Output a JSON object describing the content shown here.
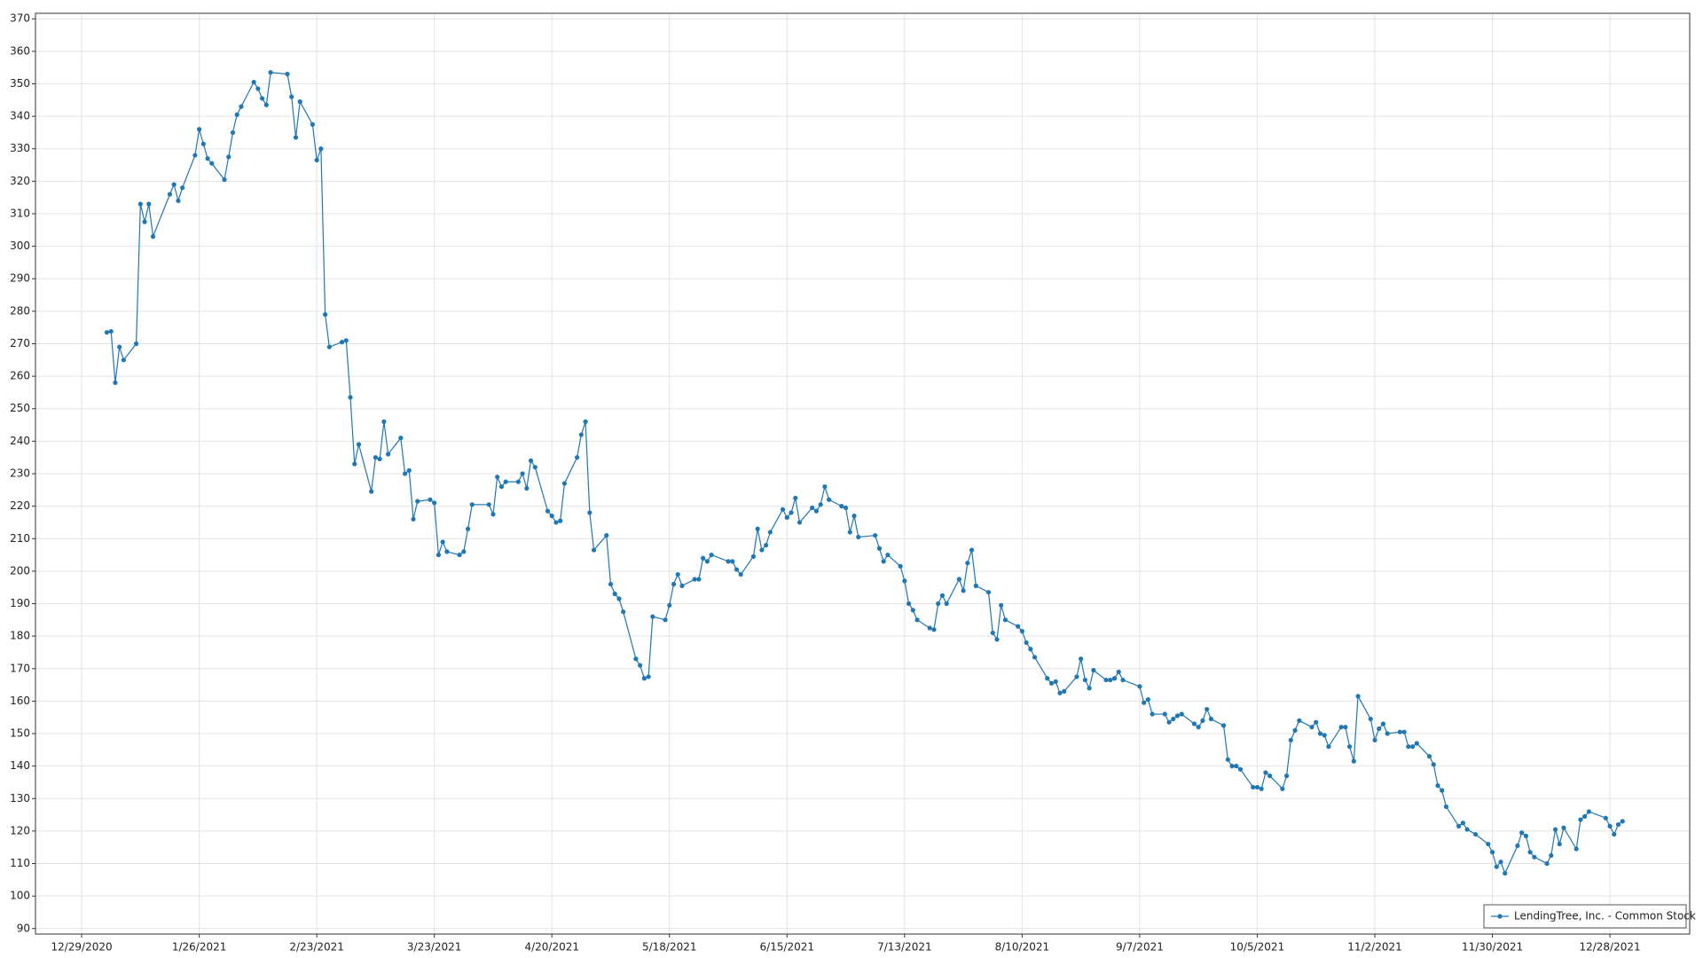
{
  "chart_data": {
    "type": "line",
    "x": [
      "1/4/2021",
      "1/5/2021",
      "1/6/2021",
      "1/7/2021",
      "1/8/2021",
      "1/11/2021",
      "1/12/2021",
      "1/13/2021",
      "1/14/2021",
      "1/15/2021",
      "1/19/2021",
      "1/20/2021",
      "1/21/2021",
      "1/22/2021",
      "1/25/2021",
      "1/26/2021",
      "1/27/2021",
      "1/28/2021",
      "1/29/2021",
      "2/1/2021",
      "2/2/2021",
      "2/3/2021",
      "2/4/2021",
      "2/5/2021",
      "2/8/2021",
      "2/9/2021",
      "2/10/2021",
      "2/11/2021",
      "2/12/2021",
      "2/16/2021",
      "2/17/2021",
      "2/18/2021",
      "2/19/2021",
      "2/22/2021",
      "2/23/2021",
      "2/24/2021",
      "2/25/2021",
      "2/26/2021",
      "3/1/2021",
      "3/2/2021",
      "3/3/2021",
      "3/4/2021",
      "3/5/2021",
      "3/8/2021",
      "3/9/2021",
      "3/10/2021",
      "3/11/2021",
      "3/12/2021",
      "3/15/2021",
      "3/16/2021",
      "3/17/2021",
      "3/18/2021",
      "3/19/2021",
      "3/22/2021",
      "3/23/2021",
      "3/24/2021",
      "3/25/2021",
      "3/26/2021",
      "3/29/2021",
      "3/30/2021",
      "3/31/2021",
      "4/1/2021",
      "4/5/2021",
      "4/6/2021",
      "4/7/2021",
      "4/8/2021",
      "4/9/2021",
      "4/12/2021",
      "4/13/2021",
      "4/14/2021",
      "4/15/2021",
      "4/16/2021",
      "4/19/2021",
      "4/20/2021",
      "4/21/2021",
      "4/22/2021",
      "4/23/2021",
      "4/26/2021",
      "4/27/2021",
      "4/28/2021",
      "4/29/2021",
      "4/30/2021",
      "5/3/2021",
      "5/4/2021",
      "5/5/2021",
      "5/6/2021",
      "5/7/2021",
      "5/10/2021",
      "5/11/2021",
      "5/12/2021",
      "5/13/2021",
      "5/14/2021",
      "5/17/2021",
      "5/18/2021",
      "5/19/2021",
      "5/20/2021",
      "5/21/2021",
      "5/24/2021",
      "5/25/2021",
      "5/26/2021",
      "5/27/2021",
      "5/28/2021",
      "6/1/2021",
      "6/2/2021",
      "6/3/2021",
      "6/4/2021",
      "6/7/2021",
      "6/8/2021",
      "6/9/2021",
      "6/10/2021",
      "6/11/2021",
      "6/14/2021",
      "6/15/2021",
      "6/16/2021",
      "6/17/2021",
      "6/18/2021",
      "6/21/2021",
      "6/22/2021",
      "6/23/2021",
      "6/24/2021",
      "6/25/2021",
      "6/28/2021",
      "6/29/2021",
      "6/30/2021",
      "7/1/2021",
      "7/2/2021",
      "7/6/2021",
      "7/7/2021",
      "7/8/2021",
      "7/9/2021",
      "7/12/2021",
      "7/13/2021",
      "7/14/2021",
      "7/15/2021",
      "7/16/2021",
      "7/19/2021",
      "7/20/2021",
      "7/21/2021",
      "7/22/2021",
      "7/23/2021",
      "7/26/2021",
      "7/27/2021",
      "7/28/2021",
      "7/29/2021",
      "7/30/2021",
      "8/2/2021",
      "8/3/2021",
      "8/4/2021",
      "8/5/2021",
      "8/6/2021",
      "8/9/2021",
      "8/10/2021",
      "8/11/2021",
      "8/12/2021",
      "8/13/2021",
      "8/16/2021",
      "8/17/2021",
      "8/18/2021",
      "8/19/2021",
      "8/20/2021",
      "8/23/2021",
      "8/24/2021",
      "8/25/2021",
      "8/26/2021",
      "8/27/2021",
      "8/30/2021",
      "8/31/2021",
      "9/1/2021",
      "9/2/2021",
      "9/3/2021",
      "9/7/2021",
      "9/8/2021",
      "9/9/2021",
      "9/10/2021",
      "9/13/2021",
      "9/14/2021",
      "9/15/2021",
      "9/16/2021",
      "9/17/2021",
      "9/20/2021",
      "9/21/2021",
      "9/22/2021",
      "9/23/2021",
      "9/24/2021",
      "9/27/2021",
      "9/28/2021",
      "9/29/2021",
      "9/30/2021",
      "10/1/2021",
      "10/4/2021",
      "10/5/2021",
      "10/6/2021",
      "10/7/2021",
      "10/8/2021",
      "10/11/2021",
      "10/12/2021",
      "10/13/2021",
      "10/14/2021",
      "10/15/2021",
      "10/18/2021",
      "10/19/2021",
      "10/20/2021",
      "10/21/2021",
      "10/22/2021",
      "10/25/2021",
      "10/26/2021",
      "10/27/2021",
      "10/28/2021",
      "10/29/2021",
      "11/1/2021",
      "11/2/2021",
      "11/3/2021",
      "11/4/2021",
      "11/5/2021",
      "11/8/2021",
      "11/9/2021",
      "11/10/2021",
      "11/11/2021",
      "11/12/2021",
      "11/15/2021",
      "11/16/2021",
      "11/17/2021",
      "11/18/2021",
      "11/19/2021",
      "11/22/2021",
      "11/23/2021",
      "11/24/2021",
      "11/26/2021",
      "11/29/2021",
      "11/30/2021",
      "12/1/2021",
      "12/2/2021",
      "12/3/2021",
      "12/6/2021",
      "12/7/2021",
      "12/8/2021",
      "12/9/2021",
      "12/10/2021",
      "12/13/2021",
      "12/14/2021",
      "12/15/2021",
      "12/16/2021",
      "12/17/2021",
      "12/20/2021",
      "12/21/2021",
      "12/22/2021",
      "12/23/2021",
      "12/27/2021",
      "12/28/2021",
      "12/29/2021",
      "12/30/2021",
      "12/31/2021"
    ],
    "series": [
      {
        "name": "LendingTree, Inc. - Common Stock",
        "color": "#1f77b4",
        "values": [
          273.5,
          273.8,
          258,
          269,
          265,
          270,
          313,
          307.5,
          313,
          303,
          316,
          319,
          314,
          318,
          328,
          336,
          331.5,
          327,
          325.5,
          320.5,
          327.5,
          335,
          340.5,
          343,
          350.5,
          348.5,
          345.5,
          343.5,
          353.5,
          353,
          346,
          333.5,
          344.5,
          337.5,
          326.5,
          330,
          279,
          269,
          270.5,
          271,
          253.5,
          233,
          239,
          224.5,
          235,
          234.5,
          246,
          236,
          241,
          230,
          231,
          216,
          221.5,
          222,
          221,
          205,
          209,
          206,
          205,
          206,
          213,
          220.5,
          220.5,
          217.5,
          229,
          226,
          227.5,
          227.5,
          230,
          225.5,
          234,
          232,
          218.5,
          217,
          215,
          215.5,
          227,
          235,
          242,
          246,
          218,
          206.5,
          211,
          196,
          193,
          191.5,
          187.5,
          173,
          171,
          167,
          167.5,
          186,
          185,
          189.5,
          196,
          199,
          195.5,
          197.5,
          197.5,
          204,
          203,
          205,
          203,
          203,
          200.5,
          199,
          204.5,
          213,
          206.5,
          208,
          212,
          219,
          216.5,
          218,
          222.5,
          215,
          219.5,
          218.5,
          220.5,
          226,
          222,
          220,
          219.5,
          212,
          217,
          210.5,
          211,
          207,
          203,
          205,
          201.5,
          197,
          190,
          188,
          185,
          182.5,
          182,
          190,
          192.5,
          190,
          197.5,
          194,
          202.5,
          206.5,
          195.5,
          193.5,
          181,
          179,
          189.5,
          185,
          183,
          181.5,
          178,
          176,
          173.5,
          167,
          165.5,
          166,
          162.5,
          163,
          167.5,
          173,
          166.5,
          164,
          169.5,
          166.5,
          166.5,
          167,
          169,
          166.5,
          164.5,
          159.5,
          160.5,
          156,
          156,
          153.5,
          154.5,
          155.5,
          156,
          153,
          152,
          154,
          157.5,
          154.5,
          152.5,
          142,
          140,
          140,
          139,
          133.5,
          133.5,
          133,
          138,
          137,
          133,
          137,
          148,
          151,
          154,
          152,
          153.5,
          150,
          149.5,
          146,
          152,
          152,
          146,
          141.5,
          161.5,
          154.5,
          148,
          151.5,
          153,
          150,
          150.5,
          150.5,
          146,
          146,
          147,
          143,
          140.5,
          134,
          132.5,
          127.5,
          121.5,
          122.5,
          120.5,
          119,
          116,
          113.5,
          109,
          110.5,
          107,
          115.5,
          119.5,
          118.5,
          113.5,
          112,
          110,
          112.5,
          120.5,
          116,
          121,
          114.5,
          123.5,
          124.5,
          126,
          124,
          121.5,
          119,
          122,
          123
        ]
      }
    ],
    "xlim": [
      "12/18/2020",
      "1/16/2022"
    ],
    "xticks": [
      "12/29/2020",
      "1/26/2021",
      "2/23/2021",
      "3/23/2021",
      "4/20/2021",
      "5/18/2021",
      "6/15/2021",
      "7/13/2021",
      "8/10/2021",
      "9/7/2021",
      "10/5/2021",
      "11/2/2021",
      "11/30/2021",
      "12/28/2021"
    ],
    "ylim": [
      88.3,
      371.7
    ],
    "yticks": [
      90,
      100,
      110,
      120,
      130,
      140,
      150,
      160,
      170,
      180,
      190,
      200,
      210,
      220,
      230,
      240,
      250,
      260,
      270,
      280,
      290,
      300,
      310,
      320,
      330,
      340,
      350,
      360,
      370
    ],
    "grid": true,
    "legend": "lower right"
  }
}
